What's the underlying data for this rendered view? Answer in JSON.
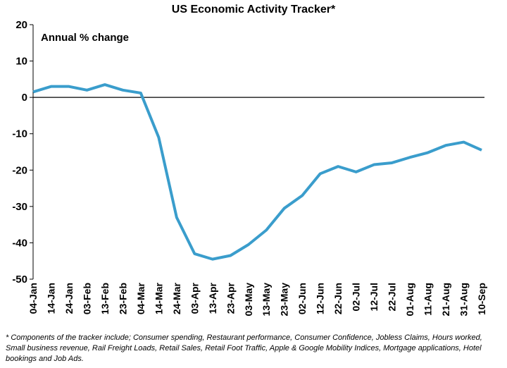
{
  "chart_data": {
    "type": "line",
    "title": "US Economic Activity Tracker*",
    "annotation": "Annual % change",
    "categories": [
      "04-Jan",
      "14-Jan",
      "24-Jan",
      "03-Feb",
      "13-Feb",
      "23-Feb",
      "04-Mar",
      "14-Mar",
      "24-Mar",
      "03-Apr",
      "13-Apr",
      "23-Apr",
      "03-May",
      "13-May",
      "23-May",
      "02-Jun",
      "12-Jun",
      "22-Jun",
      "02-Jul",
      "12-Jul",
      "22-Jul",
      "01-Aug",
      "11-Aug",
      "21-Aug",
      "31-Aug",
      "10-Sep"
    ],
    "series": [
      {
        "name": "US Economic Activity Tracker",
        "color": "#3a9dcc",
        "values": [
          1.5,
          3,
          3,
          2,
          3.5,
          2,
          1.2,
          -11,
          -33,
          -43,
          -44.5,
          -43.5,
          -40.5,
          -36.5,
          -30.5,
          -27,
          -21,
          -19,
          -20.5,
          -18.5,
          -18,
          -16.5,
          -15.2,
          -13.2,
          -12.3,
          -14.5
        ]
      }
    ],
    "ylim": [
      -50,
      20
    ],
    "yticks": [
      -50,
      -40,
      -30,
      -20,
      -10,
      0,
      10,
      20
    ],
    "footnote": "* Components of the tracker include; Consumer spending, Restaurant performance, Consumer Confidence, Jobless Claims, Hours worked, Small business revenue, Rail Freight Loads, Retail Sales, Retail Foot Traffic, Apple & Google Mobility Indices, Mortgage applications, Hotel bookings and Job Ads."
  }
}
